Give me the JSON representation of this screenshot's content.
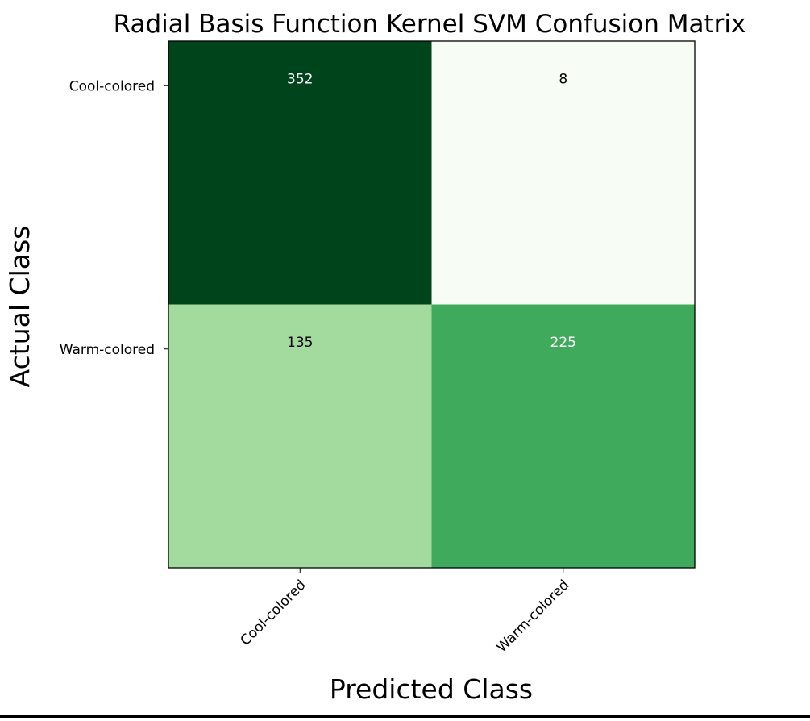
{
  "chart_data": {
    "type": "heatmap",
    "title": "Radial Basis Function Kernel SVM Confusion Matrix",
    "xlabel": "Predicted Class",
    "ylabel": "Actual Class",
    "x_categories": [
      "Cool-colored",
      "Warm-colored"
    ],
    "y_categories": [
      "Cool-colored",
      "Warm-colored"
    ],
    "values": [
      [
        352,
        8
      ],
      [
        135,
        225
      ]
    ],
    "colormap": "Greens",
    "color_range": [
      8,
      352
    ],
    "grid": false,
    "legend": "none"
  }
}
